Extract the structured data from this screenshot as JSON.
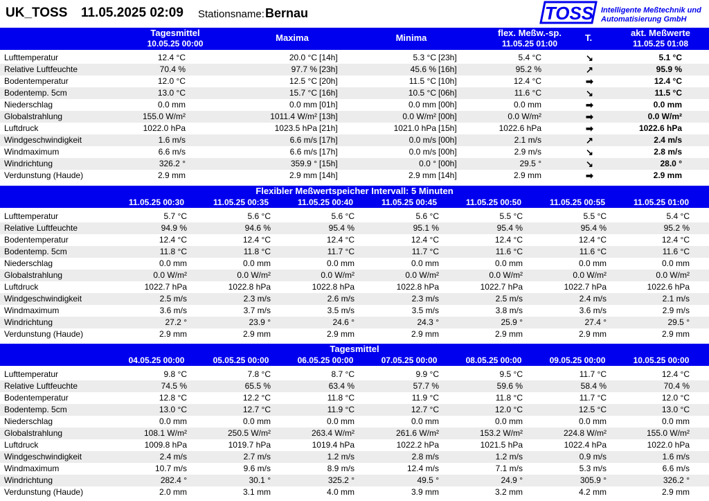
{
  "header": {
    "station": "UK_TOSS",
    "datetime": "11.05.2025 02:09",
    "station_label": "Stationsname:",
    "station_name": "Bernau",
    "logo_text": "TOSS",
    "company_line1": "Intelligente Meßtechnik und",
    "company_line2": "Automatisierung GmbH"
  },
  "top_table": {
    "headers": {
      "mean_title": "Tagesmittel",
      "mean_time": "10.05.25 00:00",
      "max": "Maxima",
      "min": "Minima",
      "flex_title": "flex. Meßw.-sp.",
      "flex_time": "11.05.25 01:00",
      "trend": "T.",
      "current_title": "akt. Meßwerte",
      "current_time": "11.05.25 01:08"
    },
    "rows": [
      {
        "label": "Lufttemperatur",
        "mean": "12.4 °C",
        "max": "20.0 °C",
        "max_t": "[14h]",
        "min": "5.3 °C",
        "min_t": "[23h]",
        "flex": "5.4 °C",
        "trend": "↘",
        "current": "5.1 °C"
      },
      {
        "label": "Relative Luftfeuchte",
        "mean": "70.4 %",
        "max": "97.7 %",
        "max_t": "[23h]",
        "min": "45.6 %",
        "min_t": "[16h]",
        "flex": "95.2 %",
        "trend": "↗",
        "current": "95.9 %"
      },
      {
        "label": "Bodentemperatur",
        "mean": "12.0 °C",
        "max": "12.5 °C",
        "max_t": "[20h]",
        "min": "11.5 °C",
        "min_t": "[10h]",
        "flex": "12.4 °C",
        "trend": "➡",
        "current": "12.4 °C"
      },
      {
        "label": "Bodentemp. 5cm",
        "mean": "13.0 °C",
        "max": "15.7 °C",
        "max_t": "[16h]",
        "min": "10.5 °C",
        "min_t": "[06h]",
        "flex": "11.6 °C",
        "trend": "↘",
        "current": "11.5 °C"
      },
      {
        "label": "Niederschlag",
        "mean": "0.0 mm",
        "max": "0.0 mm",
        "max_t": "[01h]",
        "min": "0.0 mm",
        "min_t": "[00h]",
        "flex": "0.0 mm",
        "trend": "➡",
        "current": "0.0 mm"
      },
      {
        "label": "Globalstrahlung",
        "mean": "155.0 W/m²",
        "max": "1011.4 W/m²",
        "max_t": "[13h]",
        "min": "0.0 W/m²",
        "min_t": "[00h]",
        "flex": "0.0 W/m²",
        "trend": "➡",
        "current": "0.0 W/m²"
      },
      {
        "label": "Luftdruck",
        "mean": "1022.0 hPa",
        "max": "1023.5 hPa",
        "max_t": "[21h]",
        "min": "1021.0 hPa",
        "min_t": "[15h]",
        "flex": "1022.6 hPa",
        "trend": "➡",
        "current": "1022.6 hPa"
      },
      {
        "label": "Windgeschwindigkeit",
        "mean": "1.6 m/s",
        "max": "6.6 m/s",
        "max_t": "[17h]",
        "min": "0.0 m/s",
        "min_t": "[00h]",
        "flex": "2.1 m/s",
        "trend": "↗",
        "current": "2.4 m/s"
      },
      {
        "label": "Windmaximum",
        "mean": "6.6 m/s",
        "max": "6.6 m/s",
        "max_t": "[17h]",
        "min": "0.0 m/s",
        "min_t": "[00h]",
        "flex": "2.9 m/s",
        "trend": "↘",
        "current": "2.8 m/s"
      },
      {
        "label": "Windrichtung",
        "mean": "326.2 °",
        "max": "359.9 °",
        "max_t": "[15h]",
        "min": "0.0 °",
        "min_t": "[00h]",
        "flex": "29.5 °",
        "trend": "↘",
        "current": "28.0 °"
      },
      {
        "label": "Verdunstung (Haude)",
        "mean": "2.9 mm",
        "max": "2.9 mm",
        "max_t": "[14h]",
        "min": "2.9 mm",
        "min_t": "[14h]",
        "flex": "2.9 mm",
        "trend": "➡",
        "current": "2.9 mm"
      }
    ]
  },
  "flex_table": {
    "title": "Flexibler Meßwertspeicher   Intervall: 5 Minuten",
    "times": [
      "11.05.25 00:30",
      "11.05.25 00:35",
      "11.05.25 00:40",
      "11.05.25 00:45",
      "11.05.25 00:50",
      "11.05.25 00:55",
      "11.05.25 01:00"
    ],
    "rows": [
      {
        "label": "Lufttemperatur",
        "values": [
          "5.7 °C",
          "5.6 °C",
          "5.6 °C",
          "5.6 °C",
          "5.5 °C",
          "5.5 °C",
          "5.4 °C"
        ]
      },
      {
        "label": "Relative Luftfeuchte",
        "values": [
          "94.9 %",
          "94.6 %",
          "95.4 %",
          "95.1 %",
          "95.4 %",
          "95.4 %",
          "95.2 %"
        ]
      },
      {
        "label": "Bodentemperatur",
        "values": [
          "12.4 °C",
          "12.4 °C",
          "12.4 °C",
          "12.4 °C",
          "12.4 °C",
          "12.4 °C",
          "12.4 °C"
        ]
      },
      {
        "label": "Bodentemp. 5cm",
        "values": [
          "11.8 °C",
          "11.8 °C",
          "11.7 °C",
          "11.7 °C",
          "11.6 °C",
          "11.6 °C",
          "11.6 °C"
        ]
      },
      {
        "label": "Niederschlag",
        "values": [
          "0.0 mm",
          "0.0 mm",
          "0.0 mm",
          "0.0 mm",
          "0.0 mm",
          "0.0 mm",
          "0.0 mm"
        ]
      },
      {
        "label": "Globalstrahlung",
        "values": [
          "0.0 W/m²",
          "0.0 W/m²",
          "0.0 W/m²",
          "0.0 W/m²",
          "0.0 W/m²",
          "0.0 W/m²",
          "0.0 W/m²"
        ]
      },
      {
        "label": "Luftdruck",
        "values": [
          "1022.7 hPa",
          "1022.8 hPa",
          "1022.8 hPa",
          "1022.8 hPa",
          "1022.7 hPa",
          "1022.7 hPa",
          "1022.6 hPa"
        ]
      },
      {
        "label": "Windgeschwindigkeit",
        "values": [
          "2.5 m/s",
          "2.3 m/s",
          "2.6 m/s",
          "2.3 m/s",
          "2.5 m/s",
          "2.4 m/s",
          "2.1 m/s"
        ]
      },
      {
        "label": "Windmaximum",
        "values": [
          "3.6 m/s",
          "3.7 m/s",
          "3.5 m/s",
          "3.5 m/s",
          "3.8 m/s",
          "3.6 m/s",
          "2.9 m/s"
        ]
      },
      {
        "label": "Windrichtung",
        "values": [
          "27.2 °",
          "23.9 °",
          "24.6 °",
          "24.3 °",
          "25.9 °",
          "27.4 °",
          "29.5 °"
        ]
      },
      {
        "label": "Verdunstung (Haude)",
        "values": [
          "2.9 mm",
          "2.9 mm",
          "2.9 mm",
          "2.9 mm",
          "2.9 mm",
          "2.9 mm",
          "2.9 mm"
        ]
      }
    ]
  },
  "daily_table": {
    "title": "Tagesmittel",
    "times": [
      "04.05.25 00:00",
      "05.05.25 00:00",
      "06.05.25 00:00",
      "07.05.25 00:00",
      "08.05.25 00:00",
      "09.05.25 00:00",
      "10.05.25 00:00"
    ],
    "rows": [
      {
        "label": "Lufttemperatur",
        "values": [
          "9.8 °C",
          "7.8 °C",
          "8.7 °C",
          "9.9 °C",
          "9.5 °C",
          "11.7 °C",
          "12.4 °C"
        ]
      },
      {
        "label": "Relative Luftfeuchte",
        "values": [
          "74.5 %",
          "65.5 %",
          "63.4 %",
          "57.7 %",
          "59.6 %",
          "58.4 %",
          "70.4 %"
        ]
      },
      {
        "label": "Bodentemperatur",
        "values": [
          "12.8 °C",
          "12.2 °C",
          "11.8 °C",
          "11.9 °C",
          "11.8 °C",
          "11.7 °C",
          "12.0 °C"
        ]
      },
      {
        "label": "Bodentemp. 5cm",
        "values": [
          "13.0 °C",
          "12.7 °C",
          "11.9 °C",
          "12.7 °C",
          "12.0 °C",
          "12.5 °C",
          "13.0 °C"
        ]
      },
      {
        "label": "Niederschlag",
        "values": [
          "0.0 mm",
          "0.0 mm",
          "0.0 mm",
          "0.0 mm",
          "0.0 mm",
          "0.0 mm",
          "0.0 mm"
        ]
      },
      {
        "label": "Globalstrahlung",
        "values": [
          "108.1 W/m²",
          "250.5 W/m²",
          "263.4 W/m²",
          "261.6 W/m²",
          "153.2 W/m²",
          "224.8 W/m²",
          "155.0 W/m²"
        ]
      },
      {
        "label": "Luftdruck",
        "values": [
          "1009.8 hPa",
          "1019.7 hPa",
          "1019.4 hPa",
          "1022.2 hPa",
          "1021.5 hPa",
          "1022.4 hPa",
          "1022.0 hPa"
        ]
      },
      {
        "label": "Windgeschwindigkeit",
        "values": [
          "2.4 m/s",
          "2.7 m/s",
          "1.2 m/s",
          "2.8 m/s",
          "1.2 m/s",
          "0.9 m/s",
          "1.6 m/s"
        ]
      },
      {
        "label": "Windmaximum",
        "values": [
          "10.7 m/s",
          "9.6 m/s",
          "8.9 m/s",
          "12.4 m/s",
          "7.1 m/s",
          "5.3 m/s",
          "6.6 m/s"
        ]
      },
      {
        "label": "Windrichtung",
        "values": [
          "282.4 °",
          "30.1 °",
          "325.2 °",
          "49.5 °",
          "24.9 °",
          "305.9 °",
          "326.2 °"
        ]
      },
      {
        "label": "Verdunstung (Haude)",
        "values": [
          "2.0 mm",
          "3.1 mm",
          "4.0 mm",
          "3.9 mm",
          "3.2 mm",
          "4.2 mm",
          "2.9 mm"
        ]
      }
    ]
  },
  "colors": {
    "header_bar": "#0000ee",
    "row_alt": "#ececec",
    "logo": "#0000ee"
  }
}
